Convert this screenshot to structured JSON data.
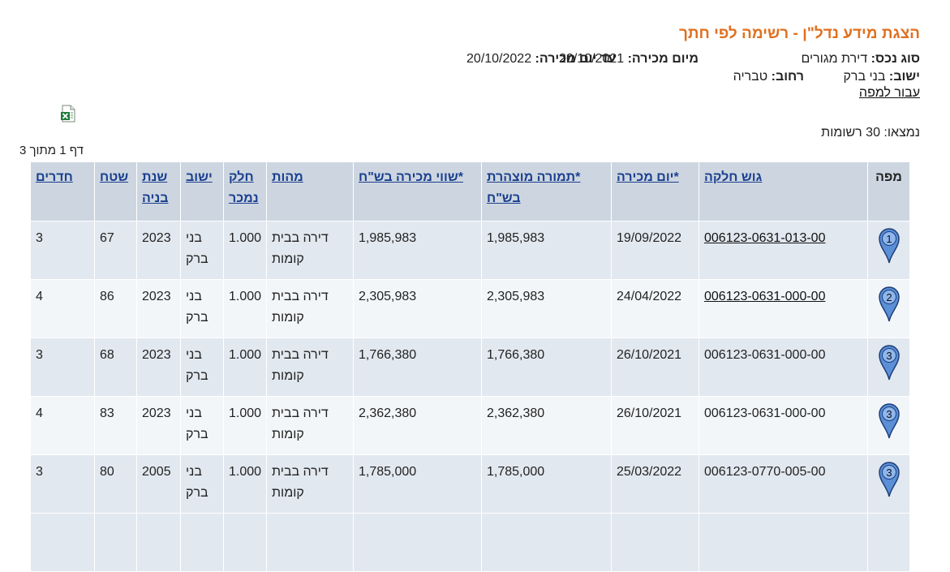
{
  "page": {
    "title": "הצגת מידע נדל\"ן - רשימה לפי חתך",
    "asset_type_label": "סוג נכס:",
    "asset_type_value": "דירת מגורים",
    "from_date_label": "מיום מכירה:",
    "from_date_value": "20/10/2021",
    "to_date_label": "עד יום מכירה:",
    "to_date_value": "20/10/2022",
    "city_label": "ישוב:",
    "city_value": "בני ברק",
    "street_label": "רחוב:",
    "street_value": "טבריה",
    "map_link": "עבור למפה",
    "found": "נמצאו: 30 רשומות",
    "page_info": "דף 1 מתוך 3",
    "excel_icon": "excel-export-icon"
  },
  "table": {
    "headers": {
      "map": "מפה",
      "parcel": "גוש חלקה",
      "sale_date": "*יום מכירה",
      "declared": "*תמורה מוצהרת בש\"ח",
      "value": "*שווי מכירה בש\"ח",
      "nature": "מהות",
      "part": "חלק נמכר",
      "city": "ישוב",
      "year": "שנת בניה",
      "area": "שטח",
      "rooms": "חדרים"
    },
    "rows": [
      {
        "pin": "1",
        "parcel": "006123-0631-013-00",
        "parcel_link": true,
        "sale_date": "19/09/2022",
        "declared": "1,985,983",
        "value": "1,985,983",
        "nature": "דירה בבית קומות",
        "part": "1.000",
        "city": "בני ברק",
        "year": "2023",
        "area": "67",
        "rooms": "3"
      },
      {
        "pin": "2",
        "parcel": "006123-0631-000-00",
        "parcel_link": true,
        "sale_date": "24/04/2022",
        "declared": "2,305,983",
        "value": "2,305,983",
        "nature": "דירה בבית קומות",
        "part": "1.000",
        "city": "בני ברק",
        "year": "2023",
        "area": "86",
        "rooms": "4"
      },
      {
        "pin": "3",
        "parcel": "006123-0631-000-00",
        "parcel_link": false,
        "sale_date": "26/10/2021",
        "declared": "1,766,380",
        "value": "1,766,380",
        "nature": "דירה בבית קומות",
        "part": "1.000",
        "city": "בני ברק",
        "year": "2023",
        "area": "68",
        "rooms": "3"
      },
      {
        "pin": "3",
        "parcel": "006123-0631-000-00",
        "parcel_link": false,
        "sale_date": "26/10/2021",
        "declared": "2,362,380",
        "value": "2,362,380",
        "nature": "דירה בבית קומות",
        "part": "1.000",
        "city": "בני ברק",
        "year": "2023",
        "area": "83",
        "rooms": "4"
      },
      {
        "pin": "3",
        "parcel": "006123-0770-005-00",
        "parcel_link": false,
        "sale_date": "25/03/2022",
        "declared": "1,785,000",
        "value": "1,785,000",
        "nature": "דירה בבית קומות",
        "part": "1.000",
        "city": "בני ברק",
        "year": "2005",
        "area": "80",
        "rooms": "3"
      }
    ]
  },
  "colors": {
    "title": "#e07020",
    "header_bg": "#cdd6e0",
    "header_text": "#1a3f8f",
    "row_odd": "#e2e8ef",
    "row_even": "#f3f6f9",
    "pin_fill": "#5b8fd6",
    "pin_stroke": "#1d3f7a"
  }
}
